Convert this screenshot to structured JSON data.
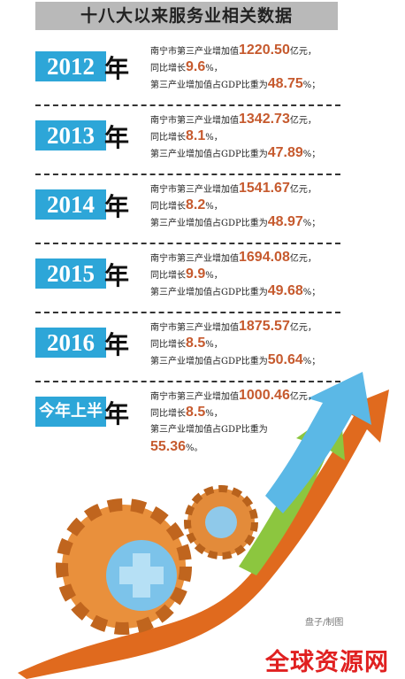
{
  "title": "十八大以来服务业相关数据",
  "entries": [
    {
      "year": "2012",
      "year_suffix": "年",
      "line1": {
        "prefix": "南宁市第三产业增加值",
        "value": "1220.50",
        "suffix": "亿元，"
      },
      "line2": {
        "prefix": "同比增长",
        "value": "9.6",
        "suffix": "%，"
      },
      "line3": {
        "prefix": "第三产业增加值占GDP比重为",
        "value": "48.75",
        "suffix": "%；"
      }
    },
    {
      "year": "2013",
      "year_suffix": "年",
      "line1": {
        "prefix": "南宁市第三产业增加值",
        "value": "1342.73",
        "suffix": "亿元，"
      },
      "line2": {
        "prefix": "同比增长",
        "value": "8.1",
        "suffix": "%，"
      },
      "line3": {
        "prefix": "第三产业增加值占GDP比重为",
        "value": "47.89",
        "suffix": "%；"
      }
    },
    {
      "year": "2014",
      "year_suffix": "年",
      "line1": {
        "prefix": "南宁市第三产业增加值",
        "value": "1541.67",
        "suffix": "亿元，"
      },
      "line2": {
        "prefix": "同比增长",
        "value": "8.2",
        "suffix": "%，"
      },
      "line3": {
        "prefix": "第三产业增加值占GDP比重为",
        "value": "48.97",
        "suffix": "%；"
      }
    },
    {
      "year": "2015",
      "year_suffix": "年",
      "line1": {
        "prefix": "南宁市第三产业增加值",
        "value": "1694.08",
        "suffix": "亿元，"
      },
      "line2": {
        "prefix": "同比增长",
        "value": "9.9",
        "suffix": "%，"
      },
      "line3": {
        "prefix": "第三产业增加值占GDP比重为",
        "value": "49.68",
        "suffix": "%；"
      }
    },
    {
      "year": "2016",
      "year_suffix": "年",
      "line1": {
        "prefix": "南宁市第三产业增加值",
        "value": "1875.57",
        "suffix": "亿元，"
      },
      "line2": {
        "prefix": "同比增长",
        "value": "8.5",
        "suffix": "%，"
      },
      "line3": {
        "prefix": "第三产业增加值占GDP比重为",
        "value": "50.64",
        "suffix": "%；"
      }
    },
    {
      "year": "今年上半",
      "year_suffix": "年",
      "line1": {
        "prefix": "南宁市第三产业增加值",
        "value": "1000.46",
        "suffix": "亿元，"
      },
      "line2": {
        "prefix": "同比增长",
        "value": "8.5",
        "suffix": "%，"
      },
      "line3": {
        "prefix": "第三产业增加值占GDP比重为",
        "value": "55.36",
        "suffix": "%。"
      }
    }
  ],
  "credit": "盘子/制图",
  "watermark": "全球资源网"
}
